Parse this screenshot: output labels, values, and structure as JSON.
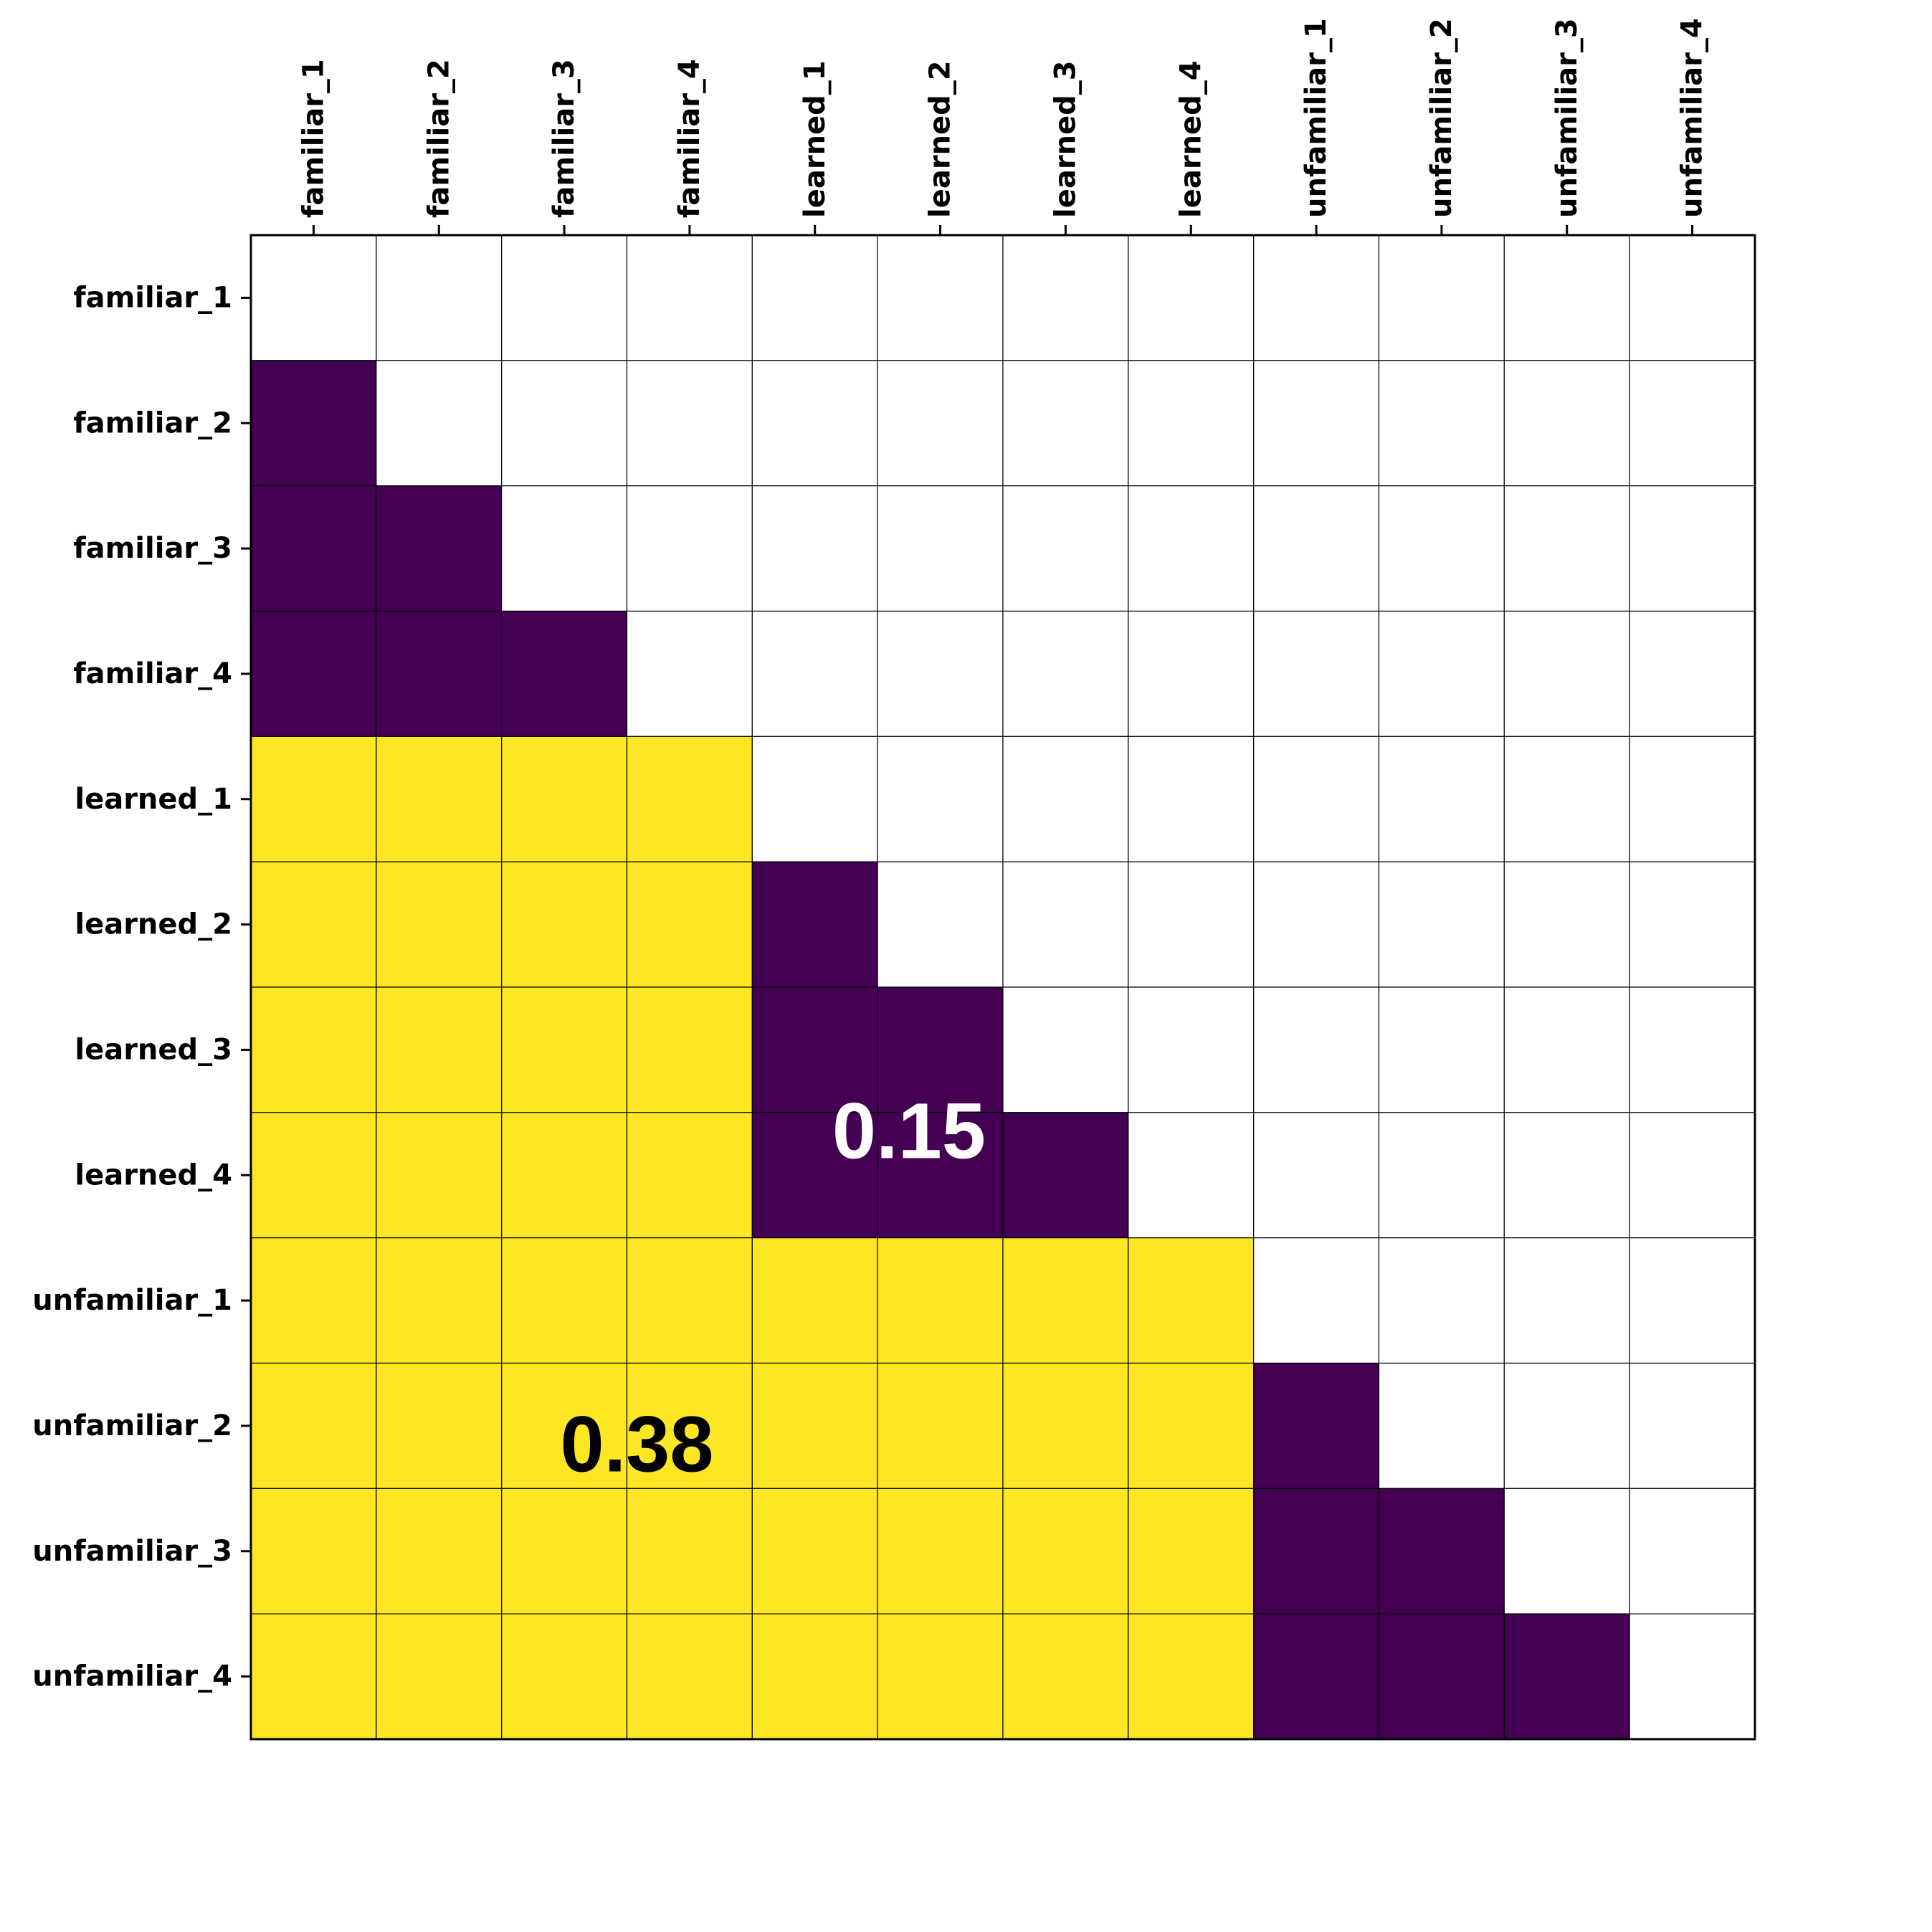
{
  "chart_data": {
    "type": "heatmap",
    "title": "",
    "xlabel": "",
    "ylabel": "",
    "x_labels": [
      "familiar_1",
      "familiar_2",
      "familiar_3",
      "familiar_4",
      "learned_1",
      "learned_2",
      "learned_3",
      "learned_4",
      "unfamiliar_1",
      "unfamiliar_2",
      "unfamiliar_3",
      "unfamiliar_4"
    ],
    "y_labels": [
      "familiar_1",
      "familiar_2",
      "familiar_3",
      "familiar_4",
      "learned_1",
      "learned_2",
      "learned_3",
      "learned_4",
      "unfamiliar_1",
      "unfamiliar_2",
      "unfamiliar_3",
      "unfamiliar_4"
    ],
    "tick_position": "top",
    "mask": "upper-triangle-including-diagonal",
    "grid": true,
    "colormap": "viridis",
    "colors": {
      "low": "#440154",
      "high": "#fde725",
      "masked": "#ffffff",
      "grid": "#000000"
    },
    "cells": [
      [
        null,
        null,
        null,
        null,
        null,
        null,
        null,
        null,
        null,
        null,
        null,
        null
      ],
      [
        0,
        null,
        null,
        null,
        null,
        null,
        null,
        null,
        null,
        null,
        null,
        null
      ],
      [
        0,
        0,
        null,
        null,
        null,
        null,
        null,
        null,
        null,
        null,
        null,
        null
      ],
      [
        0,
        0,
        0,
        null,
        null,
        null,
        null,
        null,
        null,
        null,
        null,
        null
      ],
      [
        1,
        1,
        1,
        1,
        null,
        null,
        null,
        null,
        null,
        null,
        null,
        null
      ],
      [
        1,
        1,
        1,
        1,
        0,
        null,
        null,
        null,
        null,
        null,
        null,
        null
      ],
      [
        1,
        1,
        1,
        1,
        0,
        0,
        null,
        null,
        null,
        null,
        null,
        null
      ],
      [
        1,
        1,
        1,
        1,
        0,
        0,
        0,
        null,
        null,
        null,
        null,
        null
      ],
      [
        1,
        1,
        1,
        1,
        1,
        1,
        1,
        1,
        null,
        null,
        null,
        null
      ],
      [
        1,
        1,
        1,
        1,
        1,
        1,
        1,
        1,
        0,
        null,
        null,
        null
      ],
      [
        1,
        1,
        1,
        1,
        1,
        1,
        1,
        1,
        0,
        0,
        null,
        null
      ],
      [
        1,
        1,
        1,
        1,
        1,
        1,
        1,
        1,
        0,
        0,
        0,
        null
      ]
    ],
    "annotations": [
      {
        "text": "0.15",
        "x": 5.25,
        "y": 7.15,
        "color": "#ffffff"
      },
      {
        "text": "0.38",
        "x": 3.08,
        "y": 9.65,
        "color": "#000000"
      }
    ]
  }
}
